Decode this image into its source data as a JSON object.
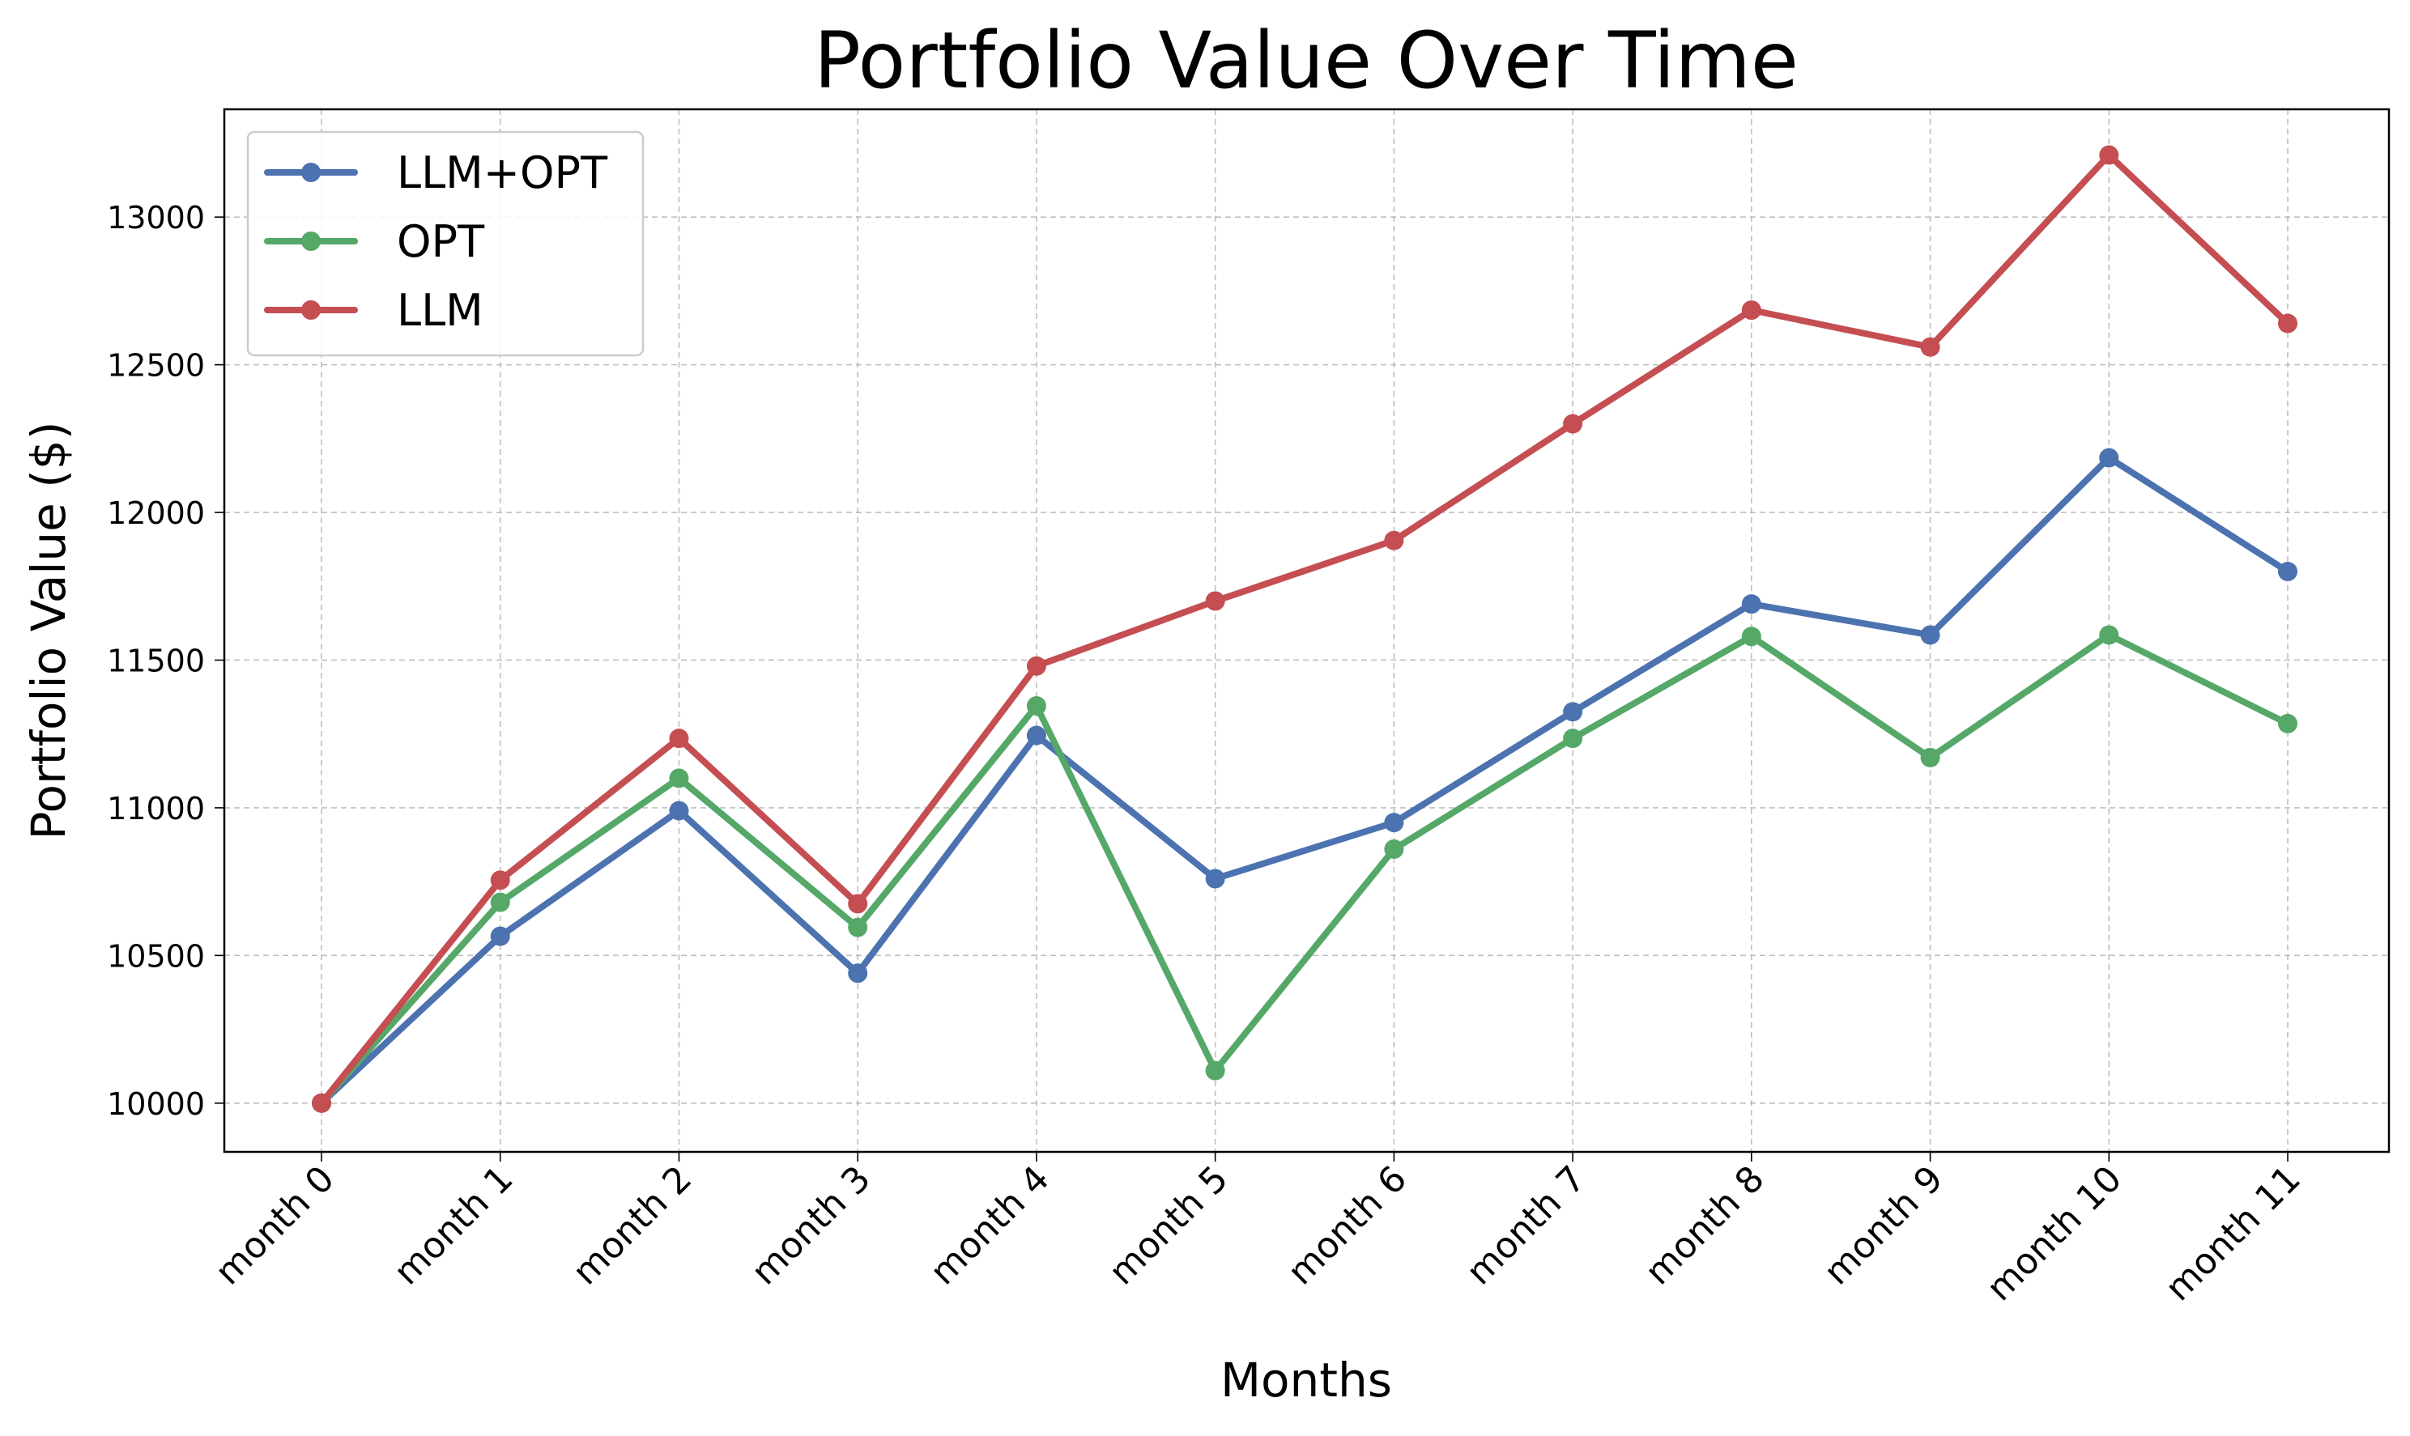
{
  "chart_data": {
    "type": "line",
    "title": "Portfolio Value Over Time",
    "xlabel": "Months",
    "ylabel": "Portfolio Value ($)",
    "categories": [
      "month 0",
      "month 1",
      "month 2",
      "month 3",
      "month 4",
      "month 5",
      "month 6",
      "month 7",
      "month 8",
      "month 9",
      "month 10",
      "month 11"
    ],
    "yticks": [
      10000,
      10500,
      11000,
      11500,
      12000,
      12500,
      13000
    ],
    "ylim": [
      9835,
      13365
    ],
    "grid": true,
    "legend_position": "top-left",
    "series": [
      {
        "name": "LLM+OPT",
        "color": "#4c72b0",
        "values": [
          10000,
          10565,
          10990,
          10440,
          11245,
          10760,
          10950,
          11325,
          11690,
          11585,
          12185,
          11800
        ]
      },
      {
        "name": "OPT",
        "color": "#55a868",
        "values": [
          10000,
          10680,
          11100,
          10595,
          11345,
          10110,
          10860,
          11235,
          11580,
          11170,
          11585,
          11285
        ]
      },
      {
        "name": "LLM",
        "color": "#c44e52",
        "values": [
          10000,
          10755,
          11235,
          10675,
          11480,
          11700,
          11905,
          12300,
          12685,
          12560,
          13210,
          12640
        ]
      }
    ]
  }
}
